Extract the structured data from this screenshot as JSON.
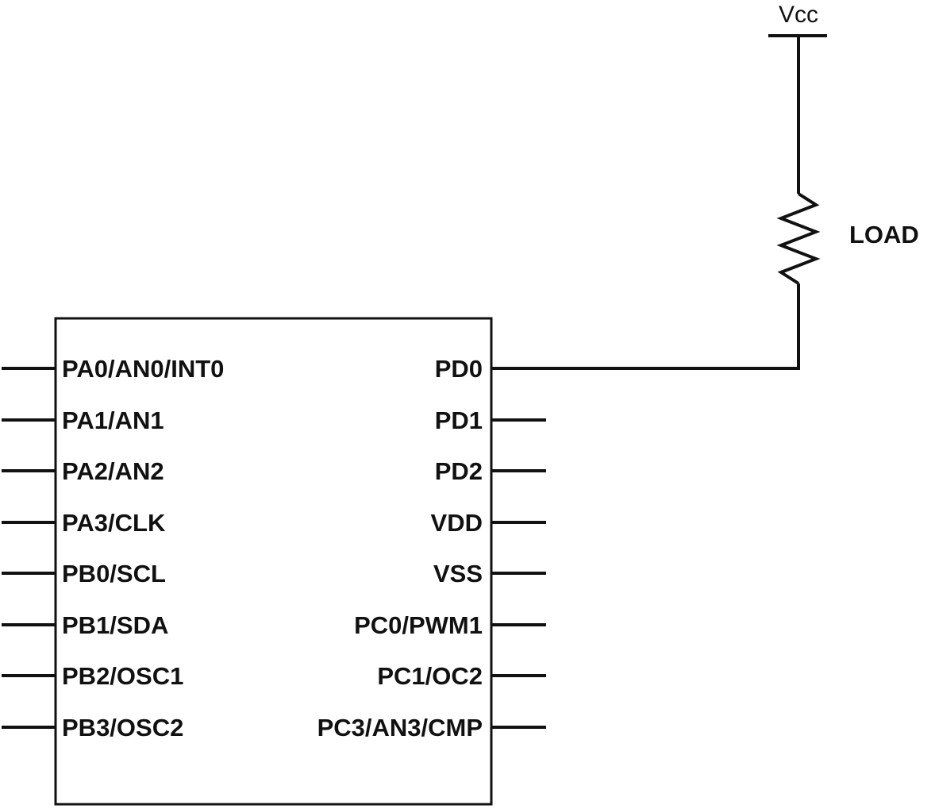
{
  "power": {
    "label": "Vcc"
  },
  "load": {
    "label": "LOAD"
  },
  "chip": {
    "left_pins": [
      "PA0/AN0/INT0",
      "PA1/AN1",
      "PA2/AN2",
      "PA3/CLK",
      "PB0/SCL",
      "PB1/SDA",
      "PB2/OSC1",
      "PB3/OSC2"
    ],
    "right_pins": [
      "PD0",
      "PD1",
      "PD2",
      "VDD",
      "VSS",
      "PC0/PWM1",
      "PC1/OC2",
      "PC3/AN3/CMP"
    ]
  },
  "connections": [
    {
      "from": "PD0",
      "to": "LOAD"
    },
    {
      "from": "LOAD",
      "to": "Vcc"
    }
  ],
  "colors": {
    "line": "#111111",
    "background": "#ffffff"
  }
}
